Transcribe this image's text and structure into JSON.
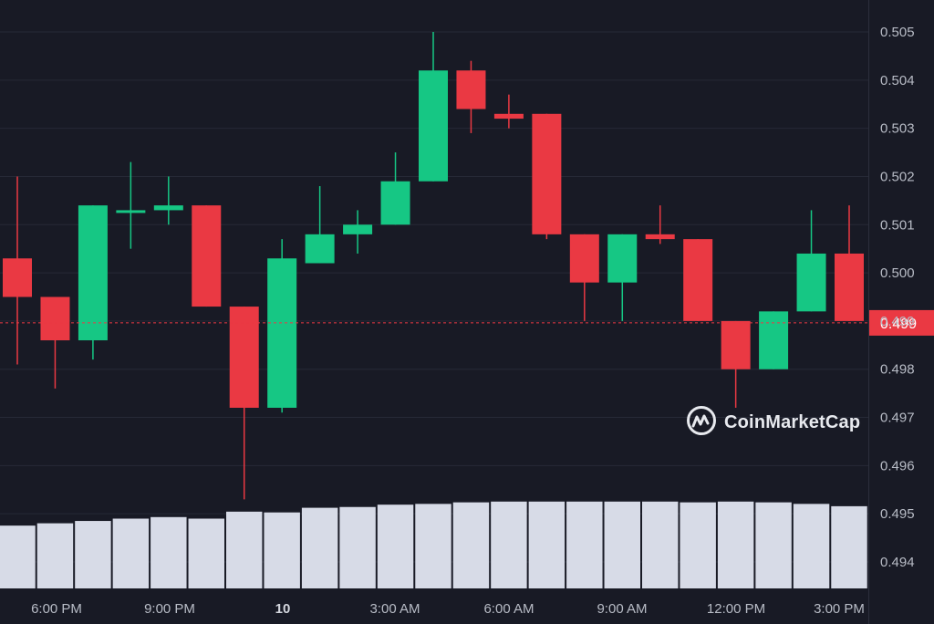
{
  "chart_data": {
    "type": "candlestick",
    "y_axis_ticks": [
      "0.505",
      "0.504",
      "0.503",
      "0.502",
      "0.501",
      "0.500",
      "0.499",
      "0.498",
      "0.497",
      "0.496",
      "0.495",
      "0.494"
    ],
    "x_axis_labels": [
      "6:00 PM",
      "9:00 PM",
      "10",
      "3:00 AM",
      "6:00 AM",
      "9:00 AM",
      "12:00 PM",
      "3:00 PM"
    ],
    "ylim": [
      0.4935,
      0.5056
    ],
    "interval": "1h",
    "current_price": "0.499",
    "candles": [
      {
        "o": 0.5003,
        "h": 0.502,
        "l": 0.4981,
        "c": 0.4995
      },
      {
        "o": 0.4995,
        "h": 0.4995,
        "l": 0.4976,
        "c": 0.4986
      },
      {
        "o": 0.4986,
        "h": 0.5014,
        "l": 0.4982,
        "c": 0.5014
      },
      {
        "o": 0.5013,
        "h": 0.5023,
        "l": 0.5005,
        "c": 0.5013
      },
      {
        "o": 0.5013,
        "h": 0.502,
        "l": 0.501,
        "c": 0.5014
      },
      {
        "o": 0.5014,
        "h": 0.5014,
        "l": 0.4993,
        "c": 0.4993
      },
      {
        "o": 0.4993,
        "h": 0.4993,
        "l": 0.4953,
        "c": 0.4972
      },
      {
        "o": 0.4972,
        "h": 0.5007,
        "l": 0.4971,
        "c": 0.5003
      },
      {
        "o": 0.5002,
        "h": 0.5018,
        "l": 0.5002,
        "c": 0.5008
      },
      {
        "o": 0.5008,
        "h": 0.5013,
        "l": 0.5004,
        "c": 0.501
      },
      {
        "o": 0.501,
        "h": 0.5025,
        "l": 0.501,
        "c": 0.5019
      },
      {
        "o": 0.5019,
        "h": 0.505,
        "l": 0.5019,
        "c": 0.5042
      },
      {
        "o": 0.5042,
        "h": 0.5044,
        "l": 0.5029,
        "c": 0.5034
      },
      {
        "o": 0.5033,
        "h": 0.5037,
        "l": 0.503,
        "c": 0.5032
      },
      {
        "o": 0.5033,
        "h": 0.5033,
        "l": 0.5007,
        "c": 0.5008
      },
      {
        "o": 0.5008,
        "h": 0.5008,
        "l": 0.499,
        "c": 0.4998
      },
      {
        "o": 0.4998,
        "h": 0.5008,
        "l": 0.499,
        "c": 0.5008
      },
      {
        "o": 0.5008,
        "h": 0.5014,
        "l": 0.5006,
        "c": 0.5007
      },
      {
        "o": 0.5007,
        "h": 0.5007,
        "l": 0.499,
        "c": 0.499
      },
      {
        "o": 0.499,
        "h": 0.499,
        "l": 0.4972,
        "c": 0.498
      },
      {
        "o": 0.498,
        "h": 0.4992,
        "l": 0.498,
        "c": 0.4992
      },
      {
        "o": 0.4992,
        "h": 0.5013,
        "l": 0.4992,
        "c": 0.5004
      },
      {
        "o": 0.5004,
        "h": 0.5014,
        "l": 0.499,
        "c": 0.499
      }
    ],
    "volume": [
      0.81,
      0.84,
      0.87,
      0.9,
      0.92,
      0.9,
      0.99,
      0.98,
      1.04,
      1.05,
      1.08,
      1.09,
      1.11,
      1.12,
      1.12,
      1.12,
      1.12,
      1.12,
      1.11,
      1.12,
      1.11,
      1.09,
      1.06
    ],
    "colors": {
      "up": "#16c784",
      "down": "#ea3943",
      "background": "#181a25",
      "grid": "#262936",
      "volume": "#d7dbe7"
    }
  },
  "watermark": {
    "text": "CoinMarketCap",
    "icon": "coinmarketcap-logo-icon"
  }
}
